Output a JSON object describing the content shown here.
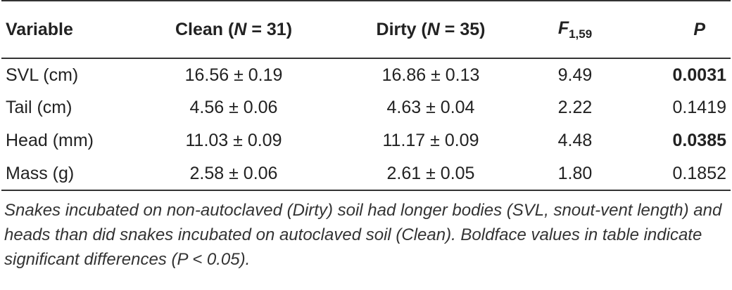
{
  "table": {
    "header": [
      [
        "Variable"
      ],
      [
        "Clean (",
        "N",
        " = 31)"
      ],
      [
        "Dirty (",
        "N",
        " = 35)"
      ],
      [
        "F",
        "1,59"
      ],
      [
        "P"
      ]
    ],
    "rows": [
      [
        "SVL (cm)",
        "16.56 ± 0.19",
        "16.86 ± 0.13",
        "9.49",
        "0.0031"
      ],
      [
        "Tail (cm)",
        "4.56 ± 0.06",
        "4.63 ± 0.04",
        "2.22",
        "0.1419"
      ],
      [
        "Head (mm)",
        "11.03 ± 0.09",
        "11.17 ± 0.09",
        "4.48",
        "0.0385"
      ],
      [
        "Mass (g)",
        "2.58 ± 0.06",
        "2.61 ± 0.05",
        "1.80",
        "0.1852"
      ]
    ]
  },
  "caption": "Snakes incubated on non-autoclaved (Dirty) soil had longer bodies (SVL, snout-vent length) and heads than did snakes incubated on autoclaved soil (Clean). Boldface values in table indicate significant differences (P < 0.05)."
}
